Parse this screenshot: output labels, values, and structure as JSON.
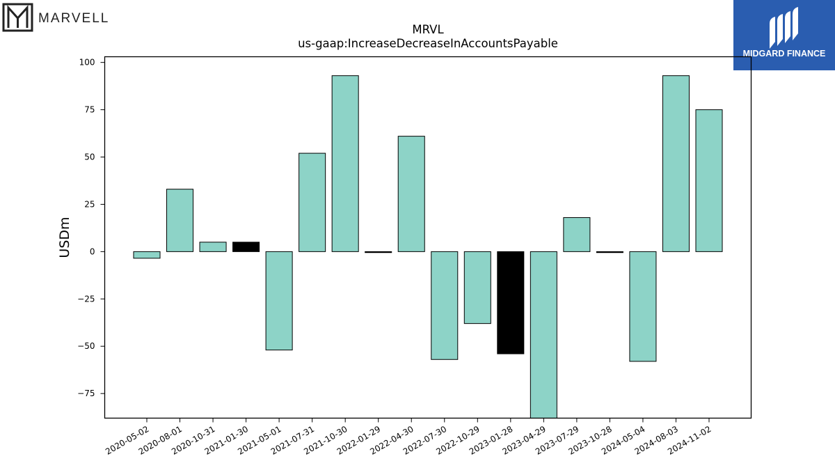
{
  "logos": {
    "left": {
      "text": "MARVELL",
      "icon": "marvell-m-logo-icon"
    },
    "right": {
      "text": "MIDGARD FINANCE",
      "icon": "midgard-logo-icon",
      "background": "#2a5db0"
    }
  },
  "chart_data": {
    "type": "bar",
    "title": "MRVL",
    "subtitle": "us-gaap:IncreaseDecreaseInAccountsPayable",
    "xlabel": "",
    "ylabel": "USDm",
    "ylim": [
      -88,
      103
    ],
    "yticks": [
      -75,
      -50,
      -25,
      0,
      25,
      50,
      75,
      100
    ],
    "ytick_labels": [
      "−75",
      "−50",
      "−25",
      "0",
      "25",
      "50",
      "75",
      "100"
    ],
    "grid": false,
    "categories": [
      "2020-05-02",
      "2020-08-01",
      "2020-10-31",
      "2021-01-30",
      "2021-05-01",
      "2021-07-31",
      "2021-10-30",
      "2022-01-29",
      "2022-04-30",
      "2022-07-30",
      "2022-10-29",
      "2023-01-28",
      "2023-04-29",
      "2023-07-29",
      "2023-10-28",
      "2024-05-04",
      "2024-08-03",
      "2024-11-02"
    ],
    "values": [
      -3.5,
      33,
      5,
      5,
      -52,
      52,
      93,
      -0.5,
      61,
      -57,
      -38,
      -54,
      -88,
      18,
      -0.5,
      -58,
      93,
      75
    ],
    "highlight": [
      false,
      false,
      false,
      true,
      false,
      false,
      false,
      true,
      false,
      false,
      false,
      true,
      false,
      false,
      true,
      false,
      false,
      false
    ],
    "colors": {
      "bar": "#8dd3c7",
      "highlight": "#000000",
      "edge": "#000000"
    }
  }
}
